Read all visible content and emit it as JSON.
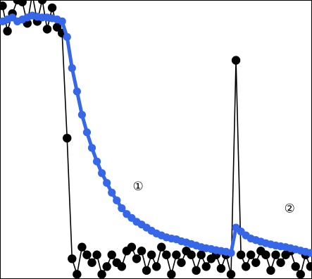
{
  "chart_data": {
    "type": "line",
    "title": "",
    "xlabel": "",
    "ylabel": "",
    "xlim": [
      -0.5,
      62.3
    ],
    "ylim": [
      -0.62,
      6.55
    ],
    "grid": false,
    "legend": "none",
    "colors": {
      "raw": "#000000",
      "smooth": "#3567e8",
      "frame": "#000000"
    },
    "annotations": [
      {
        "text": "①",
        "x": 27.3,
        "y": 1.75
      },
      {
        "text": "②",
        "x": 57.8,
        "y": 1.18
      }
    ],
    "series": [
      {
        "style": "black-dots-thin-line",
        "x": [
          0,
          1,
          2,
          3,
          4,
          5,
          6,
          7,
          8,
          9,
          10,
          11,
          12,
          13,
          14,
          15,
          16,
          17,
          18,
          19,
          20,
          21,
          22,
          23,
          24,
          25,
          26,
          27,
          28,
          29,
          30,
          31,
          32,
          33,
          34,
          35,
          36,
          37,
          38,
          39,
          40,
          41,
          42,
          43,
          44,
          45,
          46,
          47,
          48,
          49,
          50,
          51,
          52,
          53,
          54,
          55,
          56,
          57,
          58,
          59,
          60,
          61,
          62
        ],
        "y": [
          6.4,
          5.75,
          6.2,
          6.55,
          6.5,
          5.95,
          6.7,
          6.0,
          6.55,
          5.8,
          6.35,
          5.85,
          5.7,
          3.0,
          -0.1,
          -0.5,
          0.2,
          0.0,
          -0.2,
          0.0,
          -0.5,
          -0.3,
          0.0,
          -0.2,
          -0.3,
          0.1,
          0.2,
          -0.1,
          0.1,
          -0.4,
          0.0,
          -0.3,
          0.2,
          0.0,
          -0.5,
          0.0,
          -0.2,
          0.1,
          0.0,
          -0.4,
          0.0,
          -0.3,
          -0.1,
          0.0,
          -0.35,
          0.0,
          -0.5,
          5.0,
          0.0,
          -0.3,
          0.0,
          -0.2,
          0.1,
          0.0,
          -0.4,
          0.0,
          -0.2,
          0.0,
          0.1,
          -0.3,
          -0.5,
          0.0,
          -0.3
        ]
      },
      {
        "style": "blue-smooth-thick-line",
        "x": [
          0,
          1,
          2,
          3,
          4,
          5,
          6,
          7,
          8,
          9,
          10,
          11,
          12,
          13,
          14,
          15,
          16,
          17,
          18,
          19,
          20,
          21,
          22,
          23,
          24,
          25,
          26,
          27,
          28,
          29,
          30,
          31,
          32,
          33,
          34,
          35,
          36,
          37,
          38,
          39,
          40,
          41,
          42,
          43,
          44,
          45,
          46,
          47,
          48,
          49,
          50,
          51,
          52,
          53,
          54,
          55,
          56,
          57,
          58,
          59,
          60,
          61,
          62
        ],
        "y": [
          6.0,
          6.05,
          6.1,
          6.0,
          6.05,
          6.1,
          6.15,
          6.12,
          6.1,
          6.1,
          6.08,
          6.05,
          6.0,
          5.6,
          4.8,
          4.2,
          3.6,
          3.15,
          2.75,
          2.4,
          2.1,
          1.85,
          1.6,
          1.4,
          1.2,
          1.05,
          0.95,
          0.85,
          0.78,
          0.7,
          0.62,
          0.55,
          0.5,
          0.45,
          0.42,
          0.4,
          0.35,
          0.32,
          0.28,
          0.24,
          0.2,
          0.17,
          0.15,
          0.12,
          0.1,
          0.08,
          0.05,
          0.7,
          0.6,
          0.5,
          0.42,
          0.38,
          0.34,
          0.3,
          0.27,
          0.24,
          0.22,
          0.2,
          0.17,
          0.14,
          0.11,
          0.08,
          0.05
        ]
      }
    ]
  }
}
